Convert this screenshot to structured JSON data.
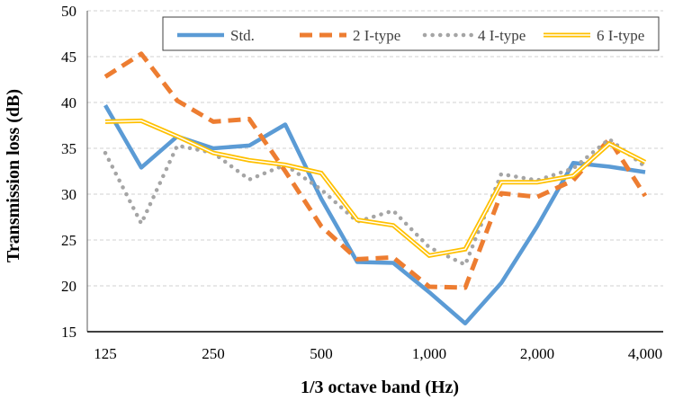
{
  "chart_data": {
    "type": "line",
    "title": "",
    "xlabel": "1/3 octave band (Hz)",
    "ylabel": "Transmission loss (dB)",
    "ylim": [
      15,
      50
    ],
    "yticks": [
      "15",
      "20",
      "25",
      "30",
      "35",
      "40",
      "45",
      "50"
    ],
    "categories": [
      "125",
      "160",
      "200",
      "250",
      "315",
      "400",
      "500",
      "630",
      "800",
      "1000",
      "1250",
      "1600",
      "2000",
      "2500",
      "3150",
      "4000"
    ],
    "xtick_labels": {
      "0": "125",
      "3": "250",
      "6": "500",
      "9": "1,000",
      "12": "2,000",
      "15": "4,000"
    },
    "grid": true,
    "legend_position": "top",
    "series": [
      {
        "name": "Std.",
        "color": "#5B9BD5",
        "style": "solid",
        "values": [
          39.7,
          32.9,
          36.3,
          35.0,
          35.3,
          37.6,
          29.5,
          22.6,
          22.5,
          19.3,
          15.9,
          20.3,
          26.5,
          33.4,
          33.0,
          32.4
        ]
      },
      {
        "name": "2 I-type",
        "color": "#ED7D31",
        "style": "dashed",
        "values": [
          42.8,
          45.3,
          40.2,
          37.9,
          38.2,
          32.5,
          26.5,
          22.9,
          23.1,
          19.9,
          19.8,
          30.1,
          29.7,
          31.5,
          36.0,
          29.8
        ]
      },
      {
        "name": "4 I-type",
        "color": "#A5A5A5",
        "style": "dotted",
        "values": [
          34.5,
          26.8,
          35.3,
          34.5,
          31.6,
          33.2,
          30.5,
          27.0,
          28.2,
          24.2,
          22.3,
          32.2,
          31.5,
          32.8,
          36.0,
          33.0
        ]
      },
      {
        "name": "6 I-type",
        "color": "#FFC000",
        "style": "double",
        "values": [
          37.9,
          38.0,
          36.3,
          34.5,
          33.7,
          33.2,
          32.3,
          27.2,
          26.6,
          23.3,
          24.0,
          31.3,
          31.3,
          32.0,
          35.5,
          33.5
        ]
      }
    ]
  }
}
